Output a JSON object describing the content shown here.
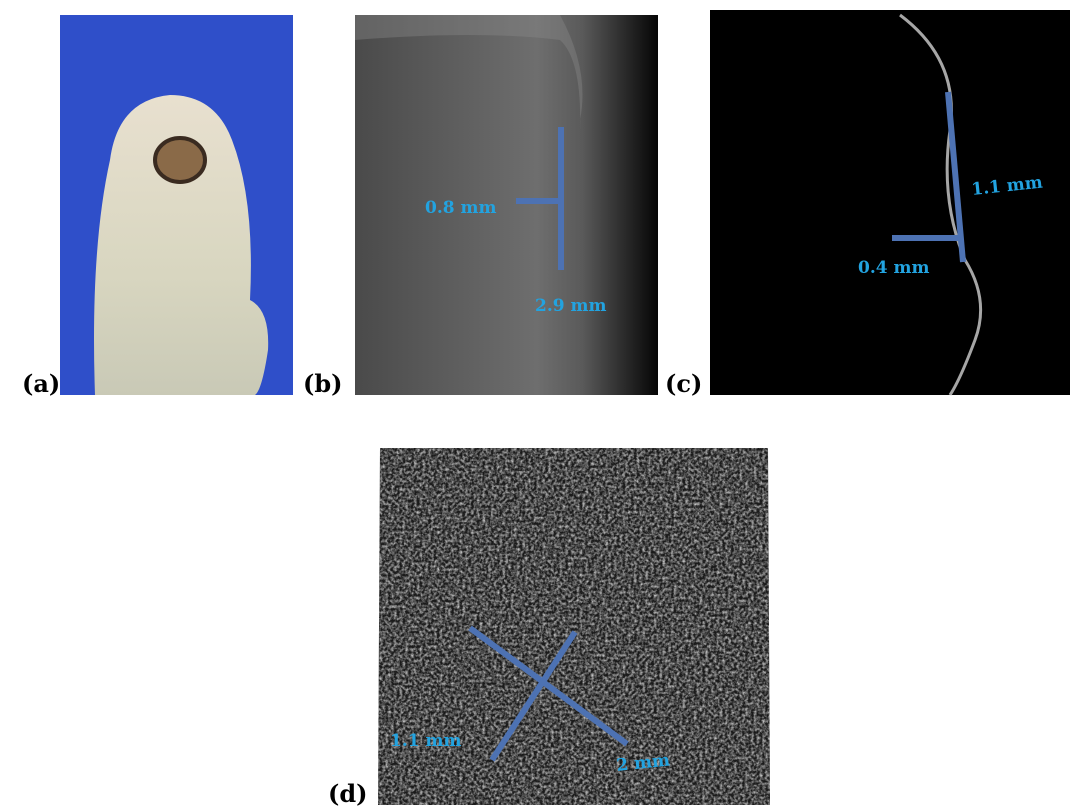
{
  "panels": [
    {
      "label": "(a)"
    },
    {
      "label": "(b)",
      "annotations": [
        "0.8 mm",
        "2.9 mm"
      ]
    },
    {
      "label": "(c)",
      "annotations": [
        "1.1 mm",
        "0.4 mm"
      ]
    },
    {
      "label": "(d)",
      "annotations": [
        "1.1 mm",
        "2 mm"
      ]
    }
  ]
}
